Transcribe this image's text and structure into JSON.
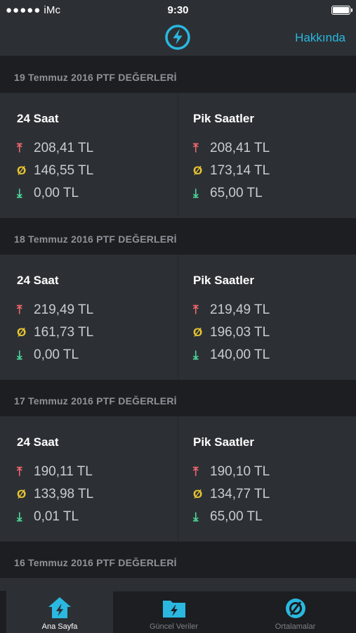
{
  "status_bar": {
    "carrier_dots": "●●●●●",
    "carrier": "iMc",
    "time": "9:30"
  },
  "nav": {
    "about_label": "Hakkında",
    "logo_icon": "lightning-bolt-icon"
  },
  "colors": {
    "accent": "#2ab8e0",
    "max": "#f0666e",
    "avg": "#e8c531",
    "min": "#4cd79a"
  },
  "icons": {
    "max": "⤒",
    "avg": "Ø",
    "min": "⤓"
  },
  "days": [
    {
      "header": "19 Temmuz 2016 PTF DEĞERLERİ",
      "all_day": {
        "title": "24 Saat",
        "max": "208,41 TL",
        "avg": "146,55 TL",
        "min": "0,00 TL"
      },
      "peak": {
        "title": "Pik Saatler",
        "max": "208,41 TL",
        "avg": "173,14 TL",
        "min": "65,00 TL"
      }
    },
    {
      "header": "18 Temmuz 2016 PTF DEĞERLERİ",
      "all_day": {
        "title": "24 Saat",
        "max": "219,49 TL",
        "avg": "161,73 TL",
        "min": "0,00 TL"
      },
      "peak": {
        "title": "Pik Saatler",
        "max": "219,49 TL",
        "avg": "196,03 TL",
        "min": "140,00 TL"
      }
    },
    {
      "header": "17 Temmuz 2016 PTF DEĞERLERİ",
      "all_day": {
        "title": "24 Saat",
        "max": "190,11 TL",
        "avg": "133,98 TL",
        "min": "0,01 TL"
      },
      "peak": {
        "title": "Pik Saatler",
        "max": "190,10 TL",
        "avg": "134,77 TL",
        "min": "65,00 TL"
      }
    },
    {
      "header": "16 Temmuz 2016 PTF DEĞERLERİ"
    }
  ],
  "tabs": [
    {
      "label": "Ana Sayfa",
      "icon": "home-bolt-icon",
      "active": true
    },
    {
      "label": "Güncel Veriler",
      "icon": "folder-bolt-icon",
      "active": false
    },
    {
      "label": "Ortalamalar",
      "icon": "average-icon",
      "active": false
    }
  ]
}
